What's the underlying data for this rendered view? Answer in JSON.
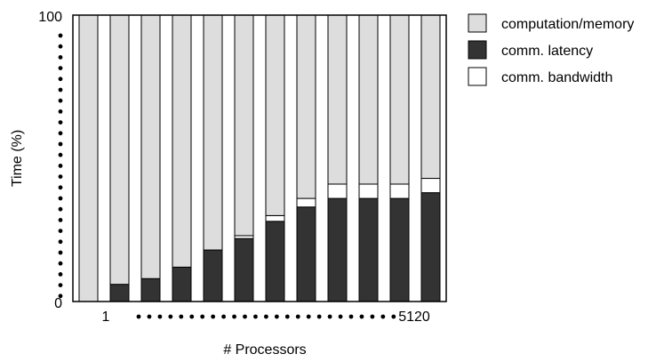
{
  "chart_data": {
    "type": "bar",
    "stacked": true,
    "categories": [
      "1",
      "",
      "",
      "",
      "",
      "",
      "",
      "",
      "",
      "",
      "",
      "5120"
    ],
    "ylabel": "Time (%)",
    "xlabel": "# Processors",
    "ylim": [
      0,
      100
    ],
    "y_ticks": [
      "0",
      "100"
    ],
    "x_tick_labels": {
      "first": "1",
      "last": "5120"
    },
    "grid": false,
    "legend_position": "top-right",
    "series": [
      {
        "name": "comm. latency",
        "color": "#333333",
        "values": [
          0,
          6,
          8,
          12,
          18,
          22,
          28,
          33,
          36,
          36,
          36,
          38
        ]
      },
      {
        "name": "comm. bandwidth",
        "color": "#ffffff",
        "values": [
          0,
          0,
          0,
          0,
          0,
          1,
          2,
          3,
          5,
          5,
          5,
          5
        ]
      },
      {
        "name": "computation/memory",
        "color": "#dddddd",
        "values": [
          100,
          94,
          92,
          88,
          82,
          77,
          70,
          64,
          59,
          59,
          59,
          57
        ]
      }
    ]
  }
}
